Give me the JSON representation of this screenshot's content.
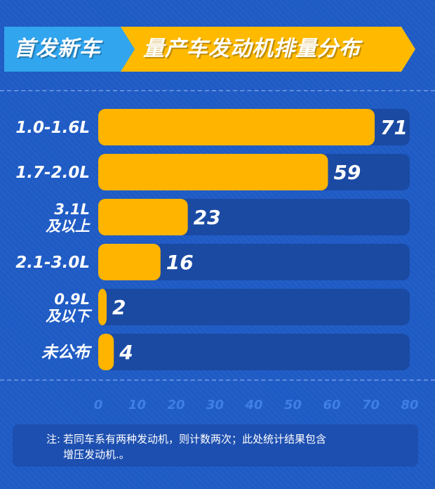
{
  "header": {
    "tag": "首发新车",
    "title": "量产车发动机排量分布"
  },
  "colors": {
    "background": "#1f5bc4",
    "bar": "#ffb400",
    "track": "#1b4aa3",
    "tag_blue": "#31a5ee",
    "tag_yellow": "#ffba00"
  },
  "chart_data": {
    "type": "bar",
    "orientation": "horizontal",
    "categories": [
      "1.0-1.6L",
      "1.7-2.0L",
      "3.1L\n及以上",
      "2.1-3.0L",
      "0.9L\n及以下",
      "未公布"
    ],
    "values": [
      71,
      59,
      23,
      16,
      2,
      4
    ],
    "xlim": [
      0,
      80
    ],
    "xticks": [
      0,
      10,
      20,
      30,
      40,
      50,
      60,
      70,
      80
    ],
    "grid": false,
    "legend": "none"
  },
  "note": {
    "prefix": "注:",
    "line1": "若同车系有两种发动机，则计数两次；此处统计结果包含",
    "line2": "增压发动机.。"
  }
}
